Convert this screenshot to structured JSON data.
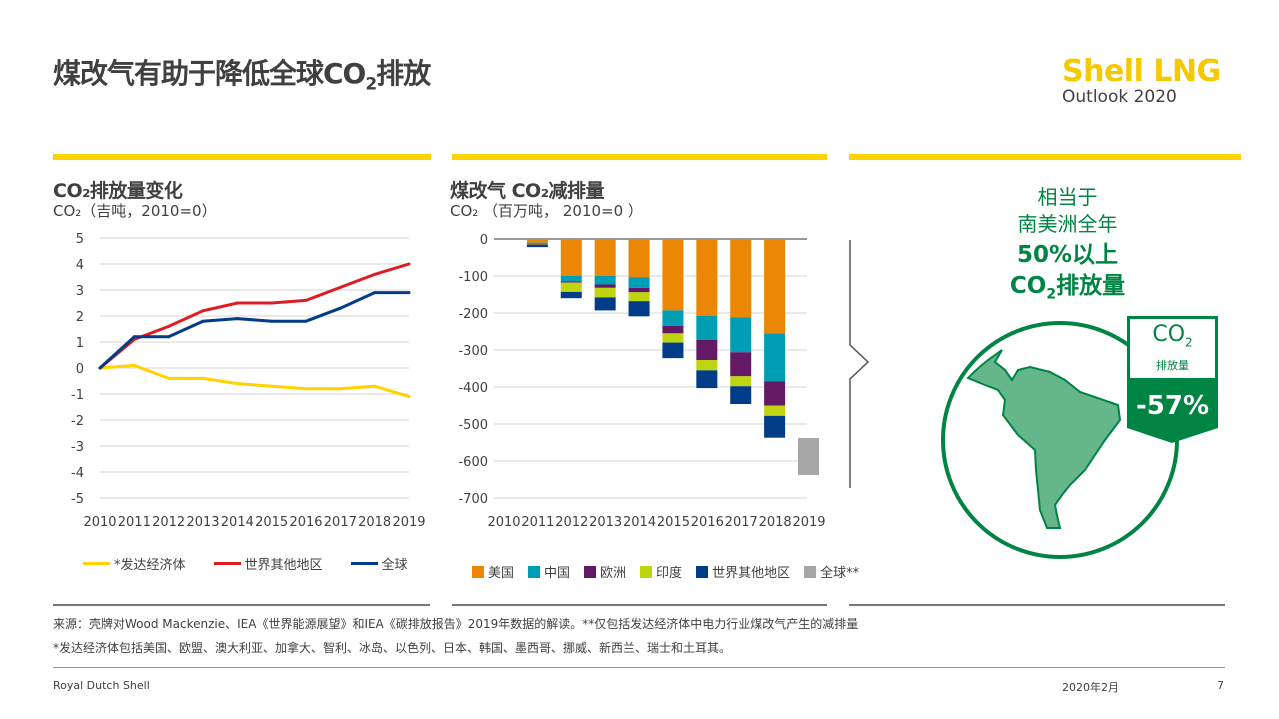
{
  "header": {
    "title_pre": "煤改气有助于降低全球CO",
    "title_sub": "2",
    "title_post": "排放",
    "logo_line1": "Shell LNG",
    "logo_line2": "Outlook 2020"
  },
  "colors": {
    "yellow": "#ffd200",
    "green": "#008443",
    "light_green": "#66b68c"
  },
  "chart_data": [
    {
      "type": "line",
      "title": "CO₂排放量变化",
      "subtitle": "CO₂（吉吨，2010=0）",
      "x": [
        "2010",
        "2011",
        "2012",
        "2013",
        "2014",
        "2015",
        "2016",
        "2017",
        "2018",
        "2019"
      ],
      "ylim": [
        -5,
        5
      ],
      "yticks": [
        "5",
        "4",
        "3",
        "2",
        "1",
        "0",
        "-1",
        "-2",
        "-3",
        "-4",
        "-5"
      ],
      "grid": true,
      "legend": "bottom",
      "series": [
        {
          "name": "*发达经济体",
          "color": "#ffd200",
          "values": [
            0,
            0.1,
            -0.4,
            -0.4,
            -0.6,
            -0.7,
            -0.8,
            -0.8,
            -0.7,
            -1.1
          ]
        },
        {
          "name": "世界其他地区",
          "color": "#dd1d21",
          "values": [
            0,
            1.1,
            1.6,
            2.2,
            2.5,
            2.5,
            2.6,
            3.1,
            3.6,
            4.0
          ]
        },
        {
          "name": "全球",
          "color": "#003c88",
          "values": [
            0,
            1.2,
            1.2,
            1.8,
            1.9,
            1.8,
            1.8,
            2.3,
            2.9,
            2.9
          ]
        }
      ]
    },
    {
      "type": "bar",
      "title": "煤改气 CO₂减排量",
      "subtitle": "CO₂ （百万吨， 2010=0 ）",
      "x": [
        "2010",
        "2011",
        "2012",
        "2013",
        "2014",
        "2015",
        "2016",
        "2017",
        "2018",
        "2019"
      ],
      "ylim": [
        -700,
        0
      ],
      "yticks": [
        "0",
        "-100",
        "-200",
        "-300",
        "-400",
        "-500",
        "-600",
        "-700"
      ],
      "grid": true,
      "legend": "bottom",
      "stacked": true,
      "series": [
        {
          "name": "美国",
          "color": "#eb8705",
          "values": [
            0,
            -10,
            -100,
            -100,
            -103,
            -193,
            -208,
            -212,
            -255,
            0
          ]
        },
        {
          "name": "中国",
          "color": "#009eb4",
          "values": [
            0,
            -3,
            -15,
            -23,
            -29,
            -42,
            -65,
            -94,
            -130,
            0
          ]
        },
        {
          "name": "欧洲",
          "color": "#641964",
          "values": [
            0,
            -2,
            -3,
            -9,
            -12,
            -20,
            -54,
            -65,
            -65,
            0
          ]
        },
        {
          "name": "印度",
          "color": "#bed50f",
          "values": [
            0,
            -1,
            -25,
            -26,
            -24,
            -25,
            -28,
            -27,
            -28,
            0
          ]
        },
        {
          "name": "世界其他地区",
          "color": "#003c88",
          "values": [
            0,
            -6,
            -17,
            -35,
            -41,
            -42,
            -48,
            -48,
            -59,
            0
          ]
        },
        {
          "name": "全球**",
          "color": "#a6a6a6",
          "values": [
            0,
            0,
            0,
            0,
            0,
            0,
            0,
            0,
            0,
            -100
          ],
          "base_2019": -538
        }
      ]
    }
  ],
  "panel": {
    "line1": "相当于",
    "line2": "南美洲全年",
    "line3": "50%以上",
    "line4_pre": "CO",
    "line4_sub": "2",
    "line4_post": "排放量",
    "badge_top": "CO",
    "badge_sub": "2",
    "badge_label": "排放量",
    "badge_value": "-57%"
  },
  "footer": {
    "source": "来源：壳牌对Wood Mackenzie、IEA《世界能源展望》和IEA《碳排放报告》2019年数据的解读。**仅包括发达经济体中电力行业煤改气产生的减排量",
    "note": "*发达经济体包括美国、欧盟、澳大利亚、加拿大、智利、冰岛、以色列、日本、韩国、墨西哥、挪威、新西兰、瑞士和土耳其。",
    "company": "Royal Dutch Shell",
    "date": "2020年2月",
    "page": "7"
  }
}
